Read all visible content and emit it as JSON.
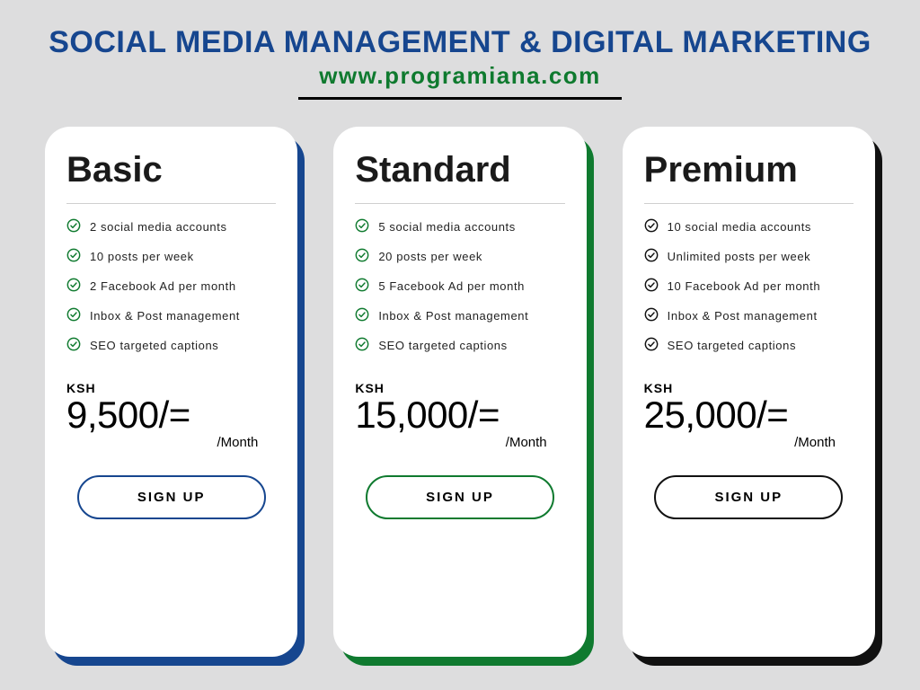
{
  "colors": {
    "bg": "#ddddde",
    "title": "#16468f",
    "subtitle": "#0f7a2f",
    "hr": "#000000",
    "card_bg": "#ffffff",
    "text": "#1a1a1a",
    "feature_text": "#222222",
    "divider": "#cfcfcf"
  },
  "header": {
    "title": "SOCIAL MEDIA MANAGEMENT & DIGITAL MARKETING",
    "subtitle": "www.programiana.com"
  },
  "common": {
    "currency_label": "KSH",
    "period_label": "/Month",
    "signup_label": "SIGN UP"
  },
  "plans": [
    {
      "name": "Basic",
      "accent": "#16468f",
      "check_color": "#0f7a2f",
      "button_border": "#16468f",
      "button_text": "#000000",
      "price": "9,500/=",
      "features": [
        "2 social media accounts",
        "10 posts per week",
        "2 Facebook Ad per month",
        "Inbox & Post management",
        "SEO targeted captions"
      ]
    },
    {
      "name": "Standard",
      "accent": "#0f7a2f",
      "check_color": "#0f7a2f",
      "button_border": "#0f7a2f",
      "button_text": "#000000",
      "price": "15,000/=",
      "features": [
        "5 social media accounts",
        "20 posts per week",
        "5 Facebook Ad per month",
        "Inbox & Post management",
        "SEO targeted captions"
      ]
    },
    {
      "name": "Premium",
      "accent": "#111111",
      "check_color": "#111111",
      "button_border": "#111111",
      "button_text": "#000000",
      "price": "25,000/=",
      "features": [
        "10 social media accounts",
        "Unlimited posts per week",
        "10 Facebook Ad per month",
        "Inbox & Post management",
        "SEO targeted captions"
      ]
    }
  ]
}
